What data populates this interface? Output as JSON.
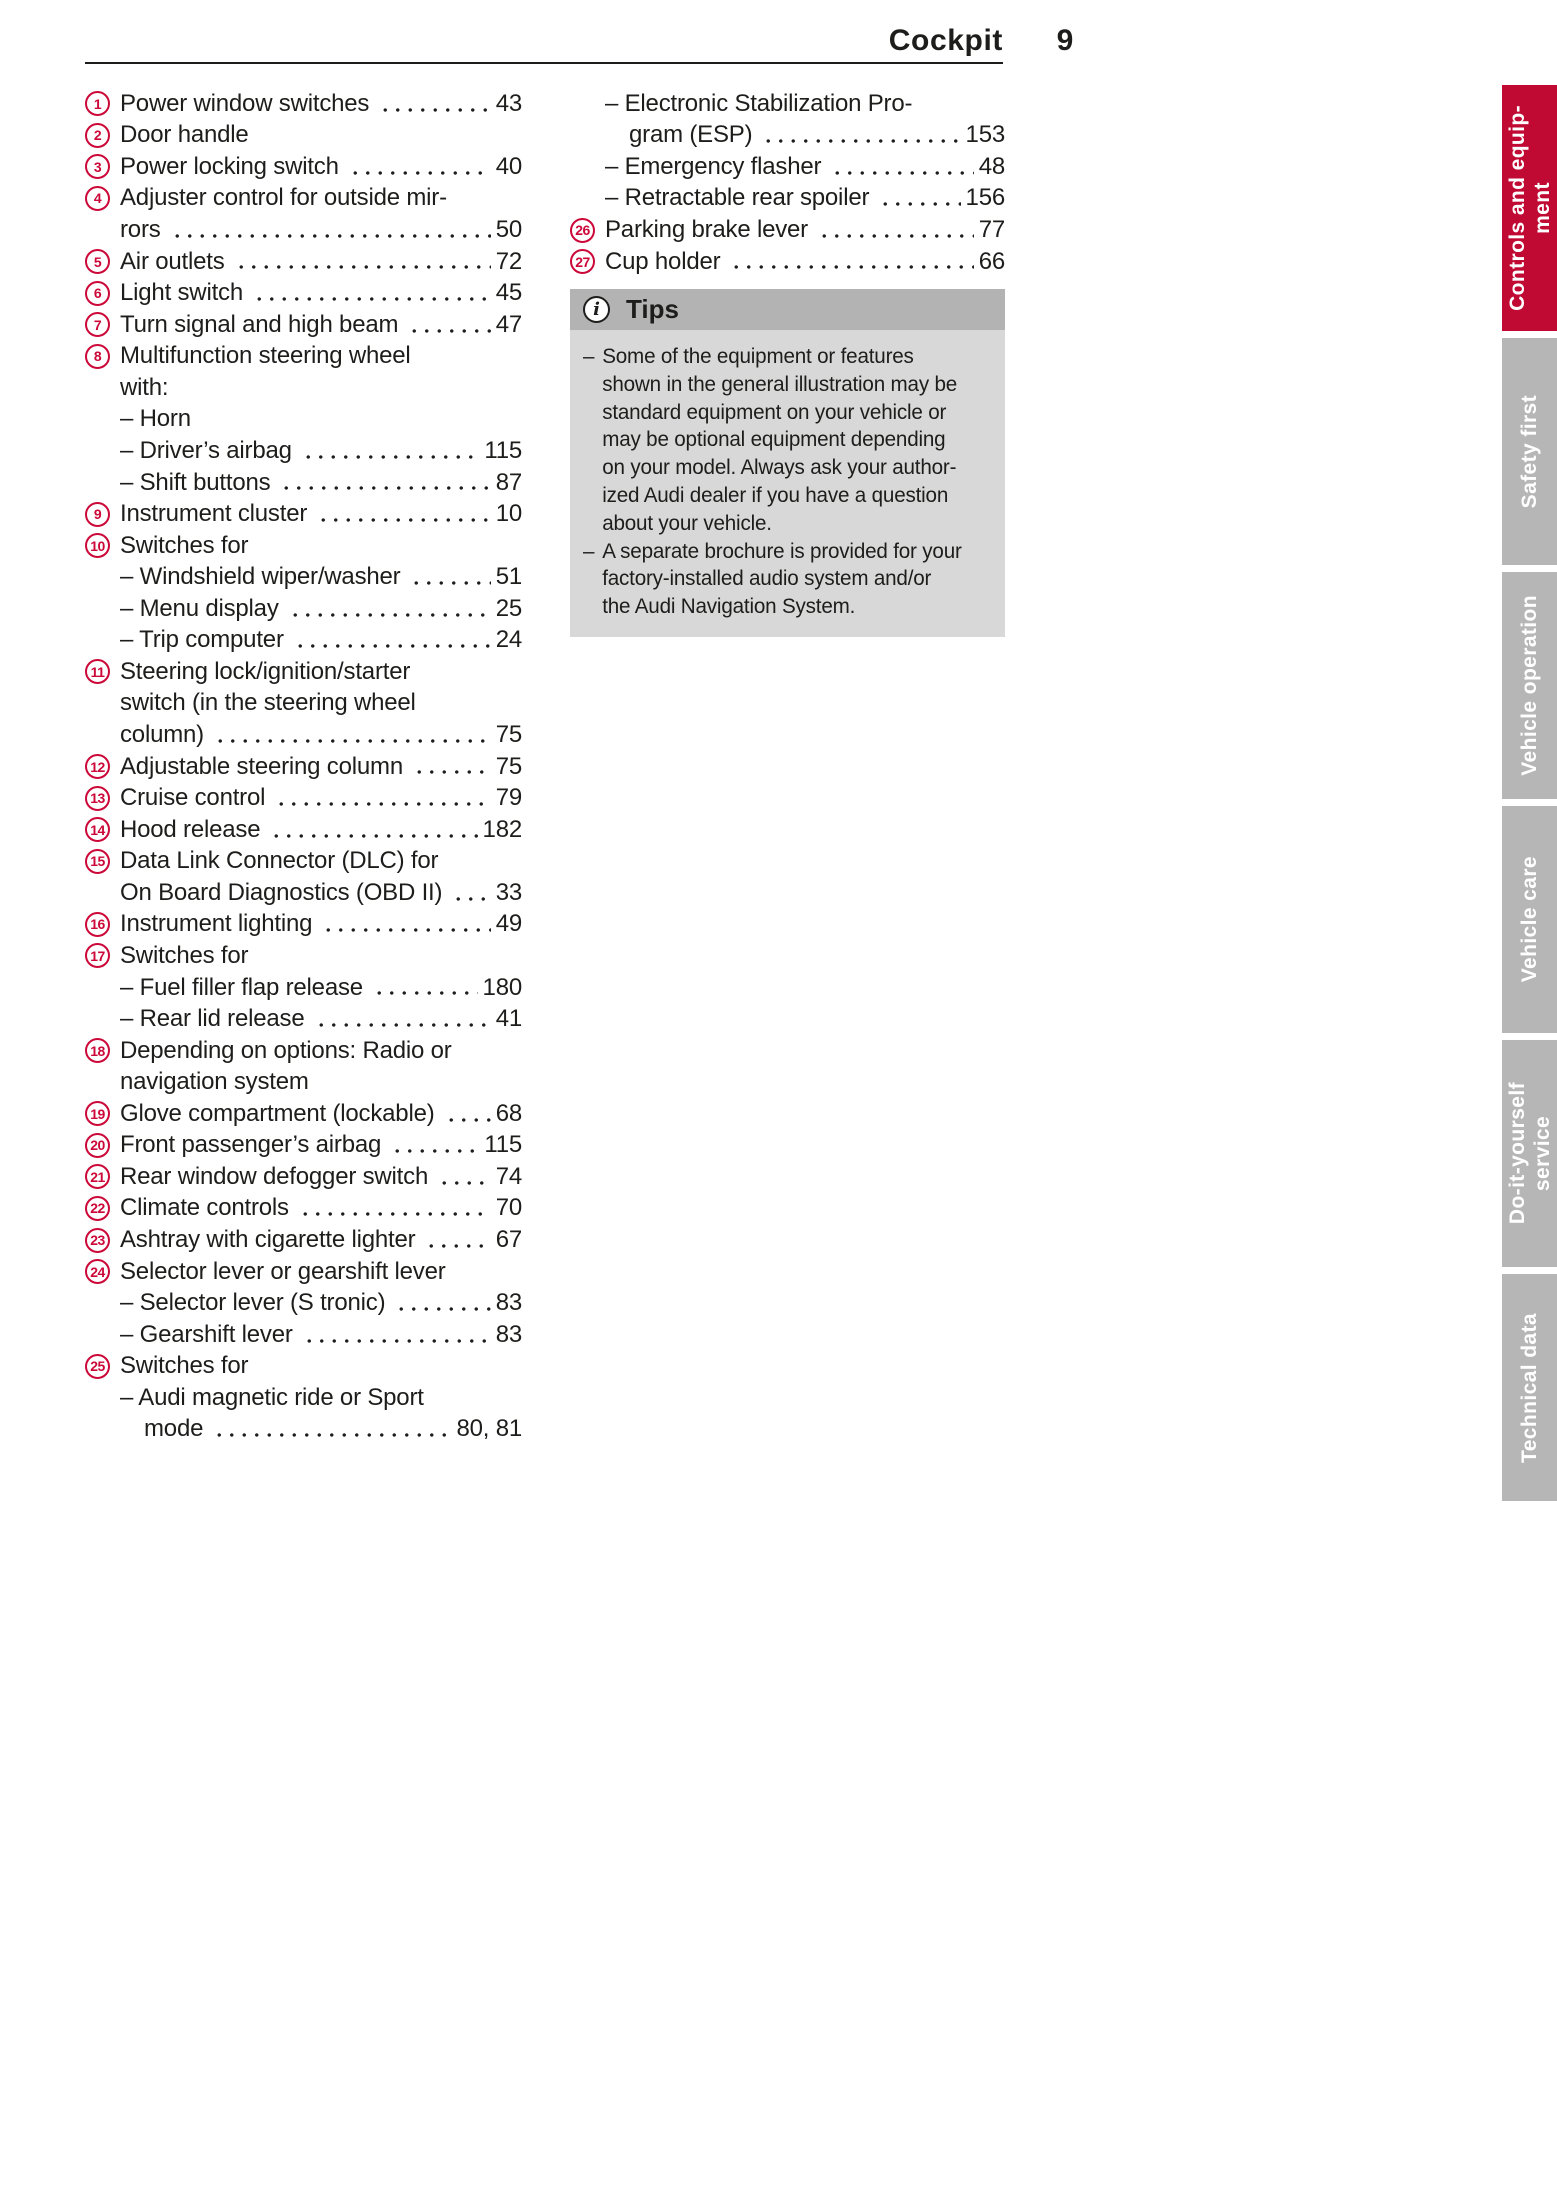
{
  "colors": {
    "ink": "#1d1d1b",
    "accent": "#cc0839",
    "tab-active": "#c00a33",
    "tab-inactive": "#b6b6b6",
    "tab-text": "#ffffff",
    "tips-head-bg": "#b3b3b3",
    "tips-body-bg": "#d8d8d8"
  },
  "header": {
    "title": "Cockpit",
    "page_number": "9"
  },
  "toc": {
    "left": [
      {
        "num": "1",
        "text": "Power window switches",
        "page": "43",
        "cls": ""
      },
      {
        "num": "2",
        "text": "Door handle",
        "page": "",
        "cls": "nopage"
      },
      {
        "num": "3",
        "text": "Power locking switch",
        "page": "40",
        "cls": ""
      },
      {
        "num": "4",
        "text": "Adjuster control for outside mir-",
        "page": "",
        "cls": "nopage"
      },
      {
        "num": "",
        "text": "rors",
        "page": "50",
        "cls": "nonum"
      },
      {
        "num": "5",
        "text": "Air outlets",
        "page": "72",
        "cls": ""
      },
      {
        "num": "6",
        "text": "Light switch",
        "page": "45",
        "cls": ""
      },
      {
        "num": "7",
        "text": "Turn signal and high beam",
        "page": "47",
        "cls": ""
      },
      {
        "num": "8",
        "text": "Multifunction steering wheel",
        "page": "",
        "cls": "nopage"
      },
      {
        "num": "",
        "text": "with:",
        "page": "",
        "cls": "nonum nopage"
      },
      {
        "num": "",
        "text": "– Horn",
        "page": "",
        "cls": "nonum nopage"
      },
      {
        "num": "",
        "text": "– Driver’s airbag",
        "page": "115",
        "cls": "nonum"
      },
      {
        "num": "",
        "text": "– Shift buttons",
        "page": "87",
        "cls": "nonum"
      },
      {
        "num": "9",
        "text": "Instrument cluster",
        "page": "10",
        "cls": ""
      },
      {
        "num": "10",
        "text": "Switches for",
        "page": "",
        "cls": "nopage"
      },
      {
        "num": "",
        "text": "– Windshield wiper/washer",
        "page": "51",
        "cls": "nonum"
      },
      {
        "num": "",
        "text": "– Menu display",
        "page": "25",
        "cls": "nonum"
      },
      {
        "num": "",
        "text": "– Trip computer",
        "page": "24",
        "cls": "nonum"
      },
      {
        "num": "11",
        "text": "Steering lock/ignition/starter",
        "page": "",
        "cls": "nopage"
      },
      {
        "num": "",
        "text": "switch (in the steering wheel",
        "page": "",
        "cls": "nonum nopage"
      },
      {
        "num": "",
        "text": "column)",
        "page": "75",
        "cls": "nonum"
      },
      {
        "num": "12",
        "text": "Adjustable steering column",
        "page": "75",
        "cls": ""
      },
      {
        "num": "13",
        "text": "Cruise control",
        "page": "79",
        "cls": ""
      },
      {
        "num": "14",
        "text": "Hood release",
        "page": "182",
        "cls": ""
      },
      {
        "num": "15",
        "text": "Data Link Connector (DLC) for",
        "page": "",
        "cls": "nopage"
      },
      {
        "num": "",
        "text": "On Board Diagnostics (OBD II)",
        "page": "33",
        "cls": "nonum"
      },
      {
        "num": "16",
        "text": "Instrument lighting",
        "page": "49",
        "cls": ""
      },
      {
        "num": "17",
        "text": "Switches for",
        "page": "",
        "cls": "nopage"
      },
      {
        "num": "",
        "text": "– Fuel filler flap release",
        "page": "180",
        "cls": "nonum"
      },
      {
        "num": "",
        "text": "– Rear lid release",
        "page": "41",
        "cls": "nonum"
      },
      {
        "num": "18",
        "text": "Depending on options: Radio or",
        "page": "",
        "cls": "nopage"
      },
      {
        "num": "",
        "text": "navigation system",
        "page": "",
        "cls": "nonum nopage"
      },
      {
        "num": "19",
        "text": "Glove compartment (lockable)",
        "page": "68",
        "cls": ""
      },
      {
        "num": "20",
        "text": "Front passenger’s airbag",
        "page": "115",
        "cls": ""
      },
      {
        "num": "21",
        "text": "Rear window defogger switch",
        "page": "74",
        "cls": ""
      },
      {
        "num": "22",
        "text": "Climate controls",
        "page": "70",
        "cls": ""
      },
      {
        "num": "23",
        "text": "Ashtray with cigarette lighter",
        "page": "67",
        "cls": ""
      },
      {
        "num": "24",
        "text": "Selector lever or gearshift lever",
        "page": "",
        "cls": "nopage"
      },
      {
        "num": "",
        "text": "– Selector lever (S tronic)",
        "page": "83",
        "cls": "nonum"
      },
      {
        "num": "",
        "text": "– Gearshift lever",
        "page": "83",
        "cls": "nonum"
      },
      {
        "num": "25",
        "text": "Switches for",
        "page": "",
        "cls": "nopage"
      },
      {
        "num": "",
        "text": "– Audi magnetic ride or Sport",
        "page": "",
        "cls": "nonum nopage"
      },
      {
        "num": "",
        "text": "mode",
        "page": "80, 81",
        "cls": "nonum subcont"
      }
    ],
    "right": [
      {
        "num": "",
        "text": "– Electronic Stabilization Pro-",
        "page": "",
        "cls": "nonum nopage"
      },
      {
        "num": "",
        "text": "gram (ESP)",
        "page": "153",
        "cls": "nonum subcont"
      },
      {
        "num": "",
        "text": "– Emergency flasher",
        "page": "48",
        "cls": "nonum"
      },
      {
        "num": "",
        "text": "– Retractable rear spoiler",
        "page": "156",
        "cls": "nonum"
      },
      {
        "num": "26",
        "text": "Parking brake lever",
        "page": "77",
        "cls": ""
      },
      {
        "num": "27",
        "text": "Cup holder",
        "page": "66",
        "cls": ""
      }
    ]
  },
  "tips": {
    "title": "Tips",
    "icon": "i",
    "lines": [
      {
        "dash": "–",
        "text": "Some of the equipment or features"
      },
      {
        "dash": "",
        "text": "shown in the general illustration may be"
      },
      {
        "dash": "",
        "text": "standard equipment on your vehicle or"
      },
      {
        "dash": "",
        "text": "may be optional equipment depending"
      },
      {
        "dash": "",
        "text": "on your model. Always ask your author-"
      },
      {
        "dash": "",
        "text": "ized Audi dealer if you have a question"
      },
      {
        "dash": "",
        "text": "about your vehicle."
      },
      {
        "dash": "–",
        "text": "A separate brochure is provided for your"
      },
      {
        "dash": "",
        "text": "factory-installed audio system and/or"
      },
      {
        "dash": "",
        "text": "the Audi Navigation System."
      }
    ]
  },
  "tabs": [
    {
      "lines": [
        "Controls and equip-",
        "ment"
      ],
      "active": true
    },
    {
      "lines": [
        "Safety first"
      ],
      "active": false
    },
    {
      "lines": [
        "Vehicle operation"
      ],
      "active": false
    },
    {
      "lines": [
        "Vehicle care"
      ],
      "active": false
    },
    {
      "lines": [
        "Do-it-yourself",
        "service"
      ],
      "active": false
    },
    {
      "lines": [
        "Technical data"
      ],
      "active": false
    }
  ]
}
